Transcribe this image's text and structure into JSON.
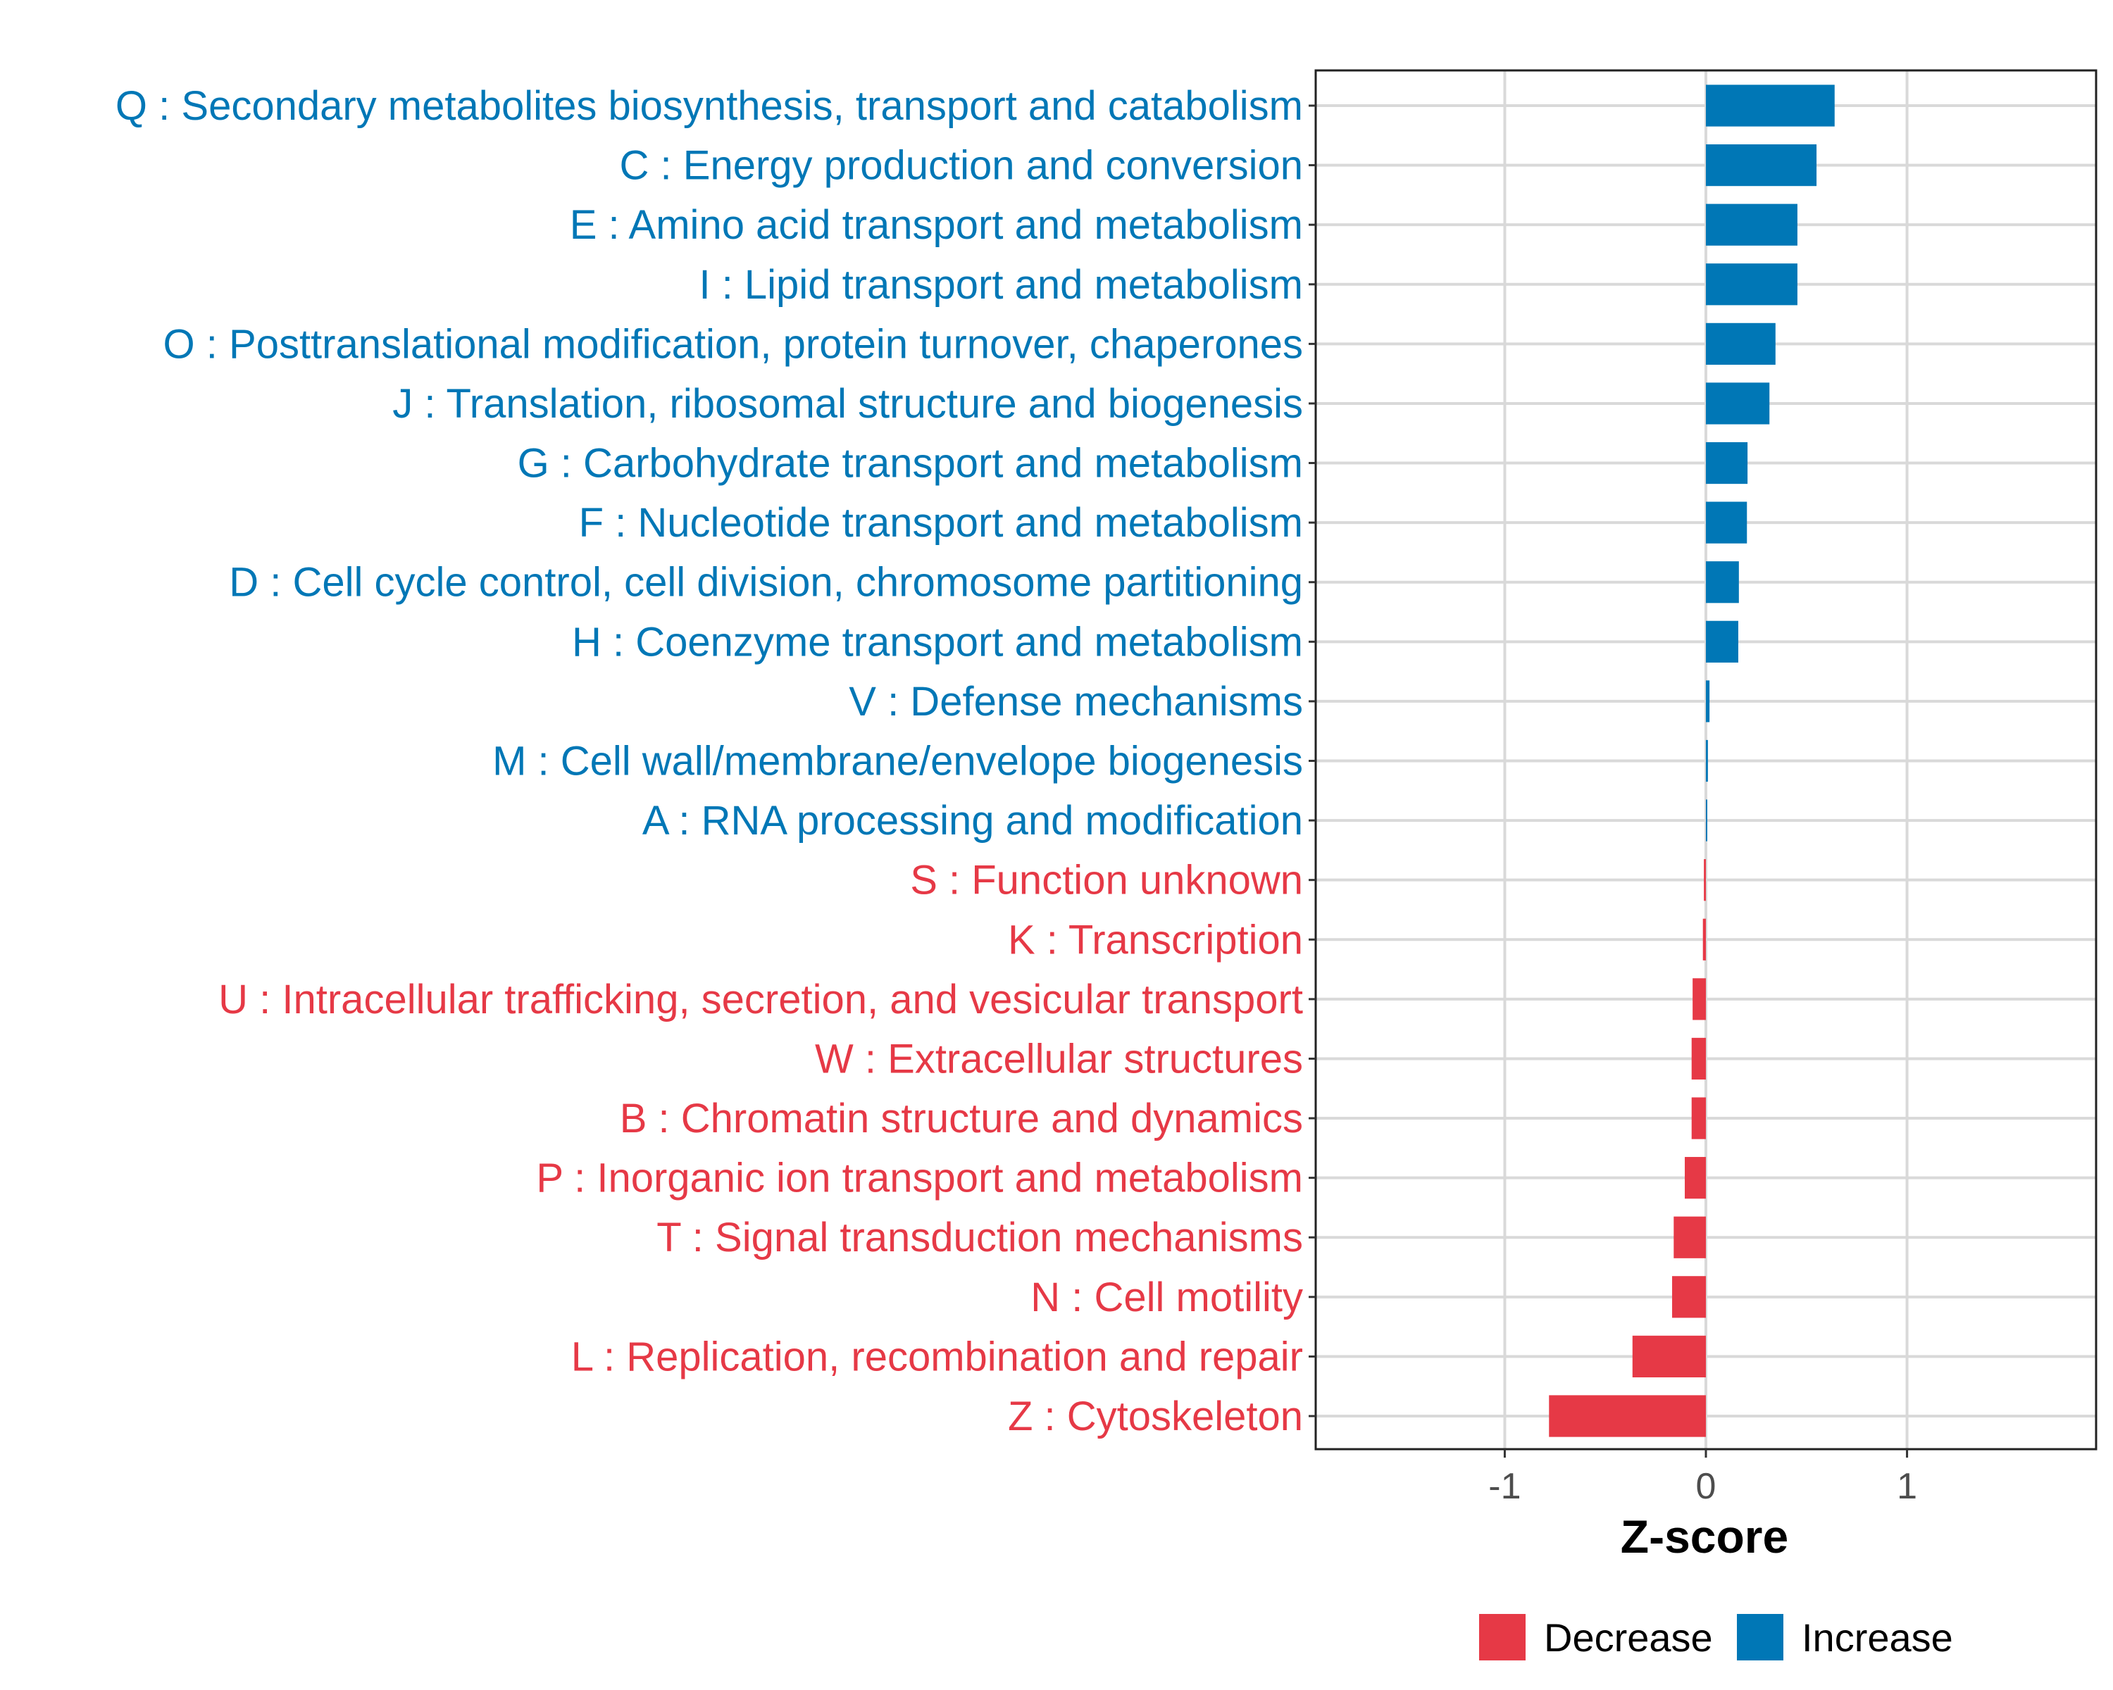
{
  "chart_data": {
    "type": "bar",
    "orientation": "horizontal",
    "title": "",
    "xlabel": "Z-score",
    "ylabel": "",
    "xlim": [
      -1.94,
      1.94
    ],
    "xticks": [
      -1,
      0,
      1
    ],
    "xtick_labels": [
      "-1",
      "0",
      "1"
    ],
    "grid": true,
    "legend": {
      "placement": "bottom",
      "entries": [
        {
          "label": "Decrease",
          "color": "#E63946"
        },
        {
          "label": "Increase",
          "color": "#0077B6"
        }
      ]
    },
    "categories": [
      "Q : Secondary metabolites biosynthesis, transport and catabolism",
      "C : Energy production and conversion",
      "E : Amino acid transport and metabolism",
      "I : Lipid transport and metabolism",
      "O : Posttranslational modification, protein turnover, chaperones",
      "J : Translation, ribosomal structure and biogenesis",
      "G : Carbohydrate transport and metabolism",
      "F : Nucleotide transport and metabolism",
      "D : Cell cycle control, cell division, chromosome partitioning",
      "H : Coenzyme transport and metabolism",
      "V : Defense mechanisms",
      "M : Cell wall/membrane/envelope biogenesis",
      "A : RNA processing and modification",
      "S : Function unknown",
      "K : Transcription",
      "U : Intracellular trafficking, secretion, and vesicular transport",
      "W : Extracellular structures",
      "B : Chromatin structure and dynamics",
      "P : Inorganic ion transport and metabolism",
      "T : Signal transduction mechanisms",
      "N : Cell motility",
      "L : Replication, recombination and repair",
      "Z : Cytoskeleton"
    ],
    "values": [
      0.64,
      0.55,
      0.455,
      0.455,
      0.346,
      0.316,
      0.207,
      0.204,
      0.164,
      0.161,
      0.018,
      0.01,
      0.005,
      -0.01,
      -0.015,
      -0.066,
      -0.071,
      -0.071,
      -0.105,
      -0.16,
      -0.168,
      -0.365,
      -0.78
    ],
    "series_by_sign": {
      "positive": "Increase",
      "negative": "Decrease"
    }
  }
}
